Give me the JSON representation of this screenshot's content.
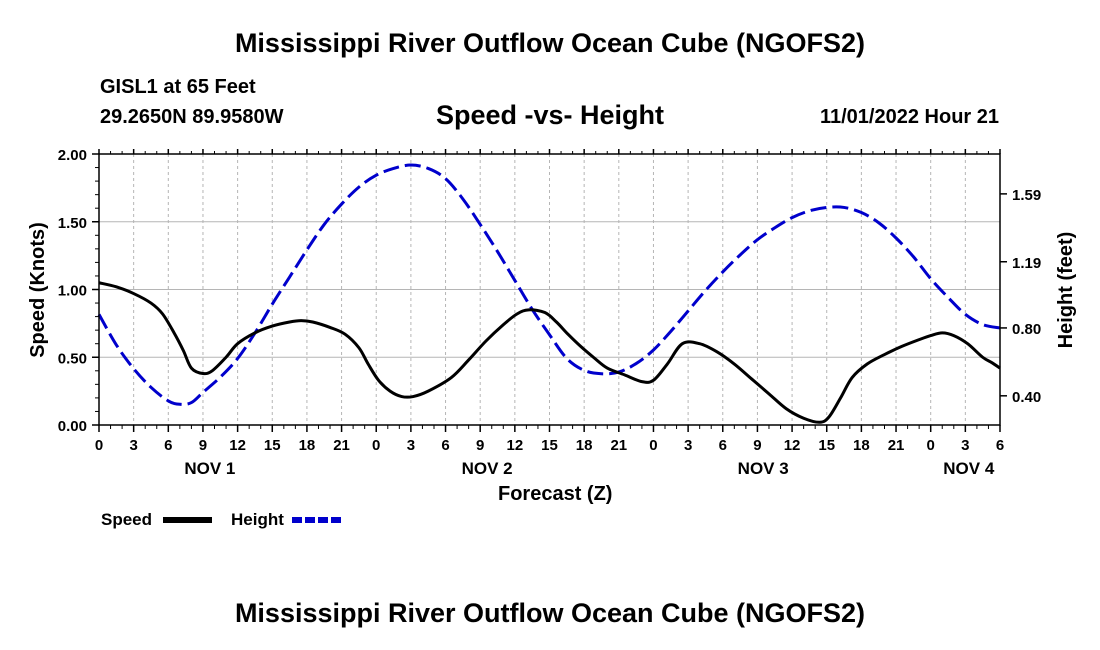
{
  "header": {
    "title": "Mississippi River Outflow Ocean Cube (NGOFS2)",
    "station": "GISL1 at 65 Feet",
    "coordinates": "29.2650N  89.9580W",
    "subtitle": "Speed -vs- Height",
    "timestamp": "11/01/2022 Hour 21"
  },
  "footer": {
    "title": "Mississippi River Outflow Ocean Cube (NGOFS2)"
  },
  "chart_data": {
    "type": "line",
    "title": "Speed -vs- Height",
    "xlabel": "Forecast (Z)",
    "ylabel": "Speed (Knots)",
    "y2label": "Height (feet)",
    "xlim": [
      0,
      78
    ],
    "ylim": [
      0,
      2.0
    ],
    "y2lim": [
      0.228,
      1.825
    ],
    "x_ticks": [
      0,
      3,
      6,
      9,
      12,
      15,
      18,
      21,
      24,
      27,
      30,
      33,
      36,
      39,
      42,
      45,
      48,
      51,
      54,
      57,
      60,
      63,
      66,
      69,
      72,
      75,
      78
    ],
    "x_tick_labels": [
      "0",
      "3",
      "6",
      "9",
      "12",
      "15",
      "18",
      "21",
      "0",
      "3",
      "6",
      "9",
      "12",
      "15",
      "18",
      "21",
      "0",
      "3",
      "6",
      "9",
      "12",
      "15",
      "18",
      "21",
      "0",
      "3",
      "6"
    ],
    "day_labels": [
      {
        "label": "NOV 1",
        "x": 9.6
      },
      {
        "label": "NOV 2",
        "x": 33.6
      },
      {
        "label": "NOV 3",
        "x": 57.5
      },
      {
        "label": "NOV 4",
        "x": 75.3
      }
    ],
    "y_ticks": [
      0.0,
      0.5,
      1.0,
      1.5,
      2.0
    ],
    "y_tick_labels": [
      "0.00",
      "0.50",
      "1.00",
      "1.50",
      "2.00"
    ],
    "y2_ticks": [
      0.4,
      0.8,
      1.19,
      1.59
    ],
    "y2_tick_labels": [
      "0.40",
      "0.80",
      "1.19",
      "1.59"
    ],
    "grid": true,
    "legend_position": "bottom-left",
    "series": [
      {
        "name": "Speed",
        "axis": "left",
        "color": "#000000",
        "style": "solid",
        "x": [
          0,
          1.5,
          3,
          4.5,
          5.5,
          6.5,
          7.3,
          8,
          9,
          9.8,
          11,
          12,
          13.5,
          15,
          16.5,
          17.5,
          18.5,
          20,
          21.3,
          22.5,
          23.3,
          24.2,
          25.2,
          26.2,
          27.2,
          28.5,
          30.5,
          32,
          33.5,
          35,
          36.2,
          37.2,
          38.6,
          39.6,
          40.6,
          41.7,
          42.8,
          44,
          45.5,
          47,
          48,
          49.2,
          50.5,
          52,
          53.5,
          55,
          56.5,
          58,
          59.5,
          61,
          62.4,
          63.2,
          64.2,
          65.2,
          66.5,
          68,
          69.5,
          71,
          72,
          73,
          74,
          75.2,
          76.5,
          77.3,
          78
        ],
        "values": [
          1.05,
          1.02,
          0.97,
          0.9,
          0.82,
          0.68,
          0.55,
          0.42,
          0.38,
          0.4,
          0.5,
          0.6,
          0.68,
          0.73,
          0.76,
          0.77,
          0.76,
          0.72,
          0.67,
          0.57,
          0.45,
          0.33,
          0.25,
          0.21,
          0.21,
          0.25,
          0.35,
          0.48,
          0.62,
          0.74,
          0.82,
          0.85,
          0.83,
          0.76,
          0.67,
          0.58,
          0.5,
          0.42,
          0.37,
          0.32,
          0.33,
          0.45,
          0.6,
          0.6,
          0.54,
          0.45,
          0.34,
          0.23,
          0.12,
          0.05,
          0.02,
          0.06,
          0.2,
          0.35,
          0.45,
          0.52,
          0.58,
          0.63,
          0.66,
          0.68,
          0.66,
          0.6,
          0.5,
          0.46,
          0.42
        ]
      },
      {
        "name": "Height",
        "axis": "right",
        "color": "#0000cc",
        "style": "dashed",
        "x": [
          0,
          1.5,
          3,
          4.5,
          6,
          7,
          8,
          9,
          10.5,
          12,
          13.5,
          15,
          16.5,
          18,
          19.5,
          21,
          22.5,
          24,
          25.5,
          27,
          28.5,
          30,
          31.5,
          33,
          34.5,
          36,
          37.5,
          39,
          40.5,
          42,
          43.5,
          45,
          46.5,
          48,
          49.5,
          51,
          52.5,
          54,
          55.5,
          57,
          58.5,
          60,
          61.5,
          63,
          64.5,
          66,
          67.5,
          69,
          70.5,
          72,
          73.5,
          75,
          76.5,
          78
        ],
        "values": [
          0.88,
          0.7,
          0.56,
          0.45,
          0.37,
          0.35,
          0.36,
          0.42,
          0.51,
          0.62,
          0.77,
          0.94,
          1.1,
          1.26,
          1.41,
          1.53,
          1.63,
          1.7,
          1.74,
          1.76,
          1.74,
          1.68,
          1.56,
          1.41,
          1.25,
          1.08,
          0.91,
          0.76,
          0.62,
          0.55,
          0.53,
          0.54,
          0.59,
          0.67,
          0.78,
          0.9,
          1.02,
          1.13,
          1.23,
          1.32,
          1.39,
          1.45,
          1.49,
          1.51,
          1.51,
          1.48,
          1.42,
          1.33,
          1.22,
          1.09,
          0.98,
          0.88,
          0.82,
          0.8
        ]
      }
    ]
  }
}
